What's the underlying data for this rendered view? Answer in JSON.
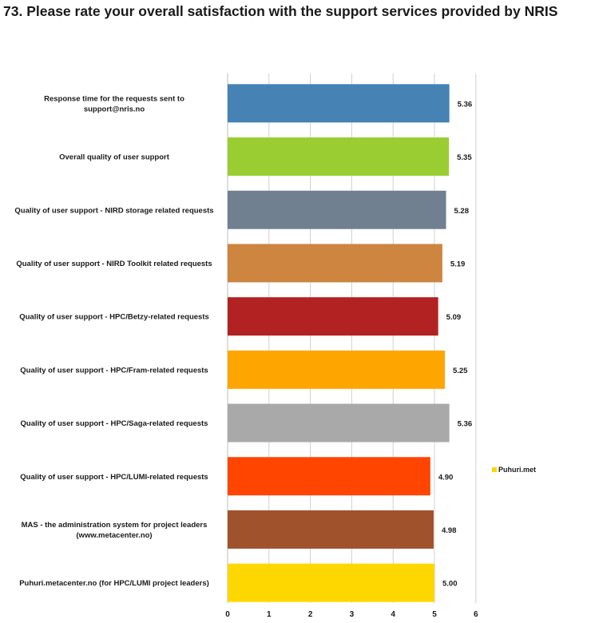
{
  "page": {
    "title": "73. Please rate your overall satisfaction with the support services provided by NRIS"
  },
  "chart_data": {
    "type": "bar",
    "orientation": "horizontal",
    "title": "73. Please rate your overall satisfaction with the support services provided by NRIS",
    "xlabel": "",
    "ylabel": "",
    "xlim": [
      0,
      6
    ],
    "ticks": [
      0,
      1,
      2,
      3,
      4,
      5,
      6
    ],
    "grid": true,
    "legend_position": "right",
    "legend_entries": [
      {
        "label": "Puhuri.met",
        "color": "#FFD700"
      }
    ],
    "categories": [
      "Response time for the requests sent to support@nris.no",
      "Overall quality of user support",
      "Quality of user support - NIRD storage related requests",
      "Quality of user support - NIRD Toolkit related requests",
      "Quality of user support - HPC/Betzy-related requests",
      "Quality of user support - HPC/Fram-related requests",
      "Quality of user support - HPC/Saga-related requests",
      "Quality of user support - HPC/LUMI-related requests",
      "MAS - the administration system for project leaders (www.metacenter.no)",
      "Puhuri.metacenter.no (for HPC/LUMI project leaders)"
    ],
    "category_lines": [
      [
        "Response time for the requests sent to",
        "support@nris.no"
      ],
      [
        "Overall quality of user support"
      ],
      [
        "Quality of user support - NIRD storage related requests"
      ],
      [
        "Quality of user support - NIRD Toolkit related requests"
      ],
      [
        "Quality of user support - HPC/Betzy-related requests"
      ],
      [
        "Quality of user support - HPC/Fram-related requests"
      ],
      [
        "Quality of user support - HPC/Saga-related requests"
      ],
      [
        "Quality of user support - HPC/LUMI-related requests"
      ],
      [
        "MAS - the administration system for project leaders",
        "(www.metacenter.no)"
      ],
      [
        "Puhuri.metacenter.no (for HPC/LUMI project leaders)"
      ]
    ],
    "values": [
      5.36,
      5.35,
      5.28,
      5.19,
      5.09,
      5.25,
      5.36,
      4.9,
      4.98,
      5.0
    ],
    "value_labels": [
      "5.36",
      "5.35",
      "5.28",
      "5.19",
      "5.09",
      "5.25",
      "5.36",
      "4.90",
      "4.98",
      "5.00"
    ],
    "colors": [
      "#4682B4",
      "#9ACD32",
      "#708090",
      "#CD853F",
      "#B22222",
      "#FFA500",
      "#A9A9A9",
      "#FF4500",
      "#A0522D",
      "#FFD700"
    ]
  }
}
